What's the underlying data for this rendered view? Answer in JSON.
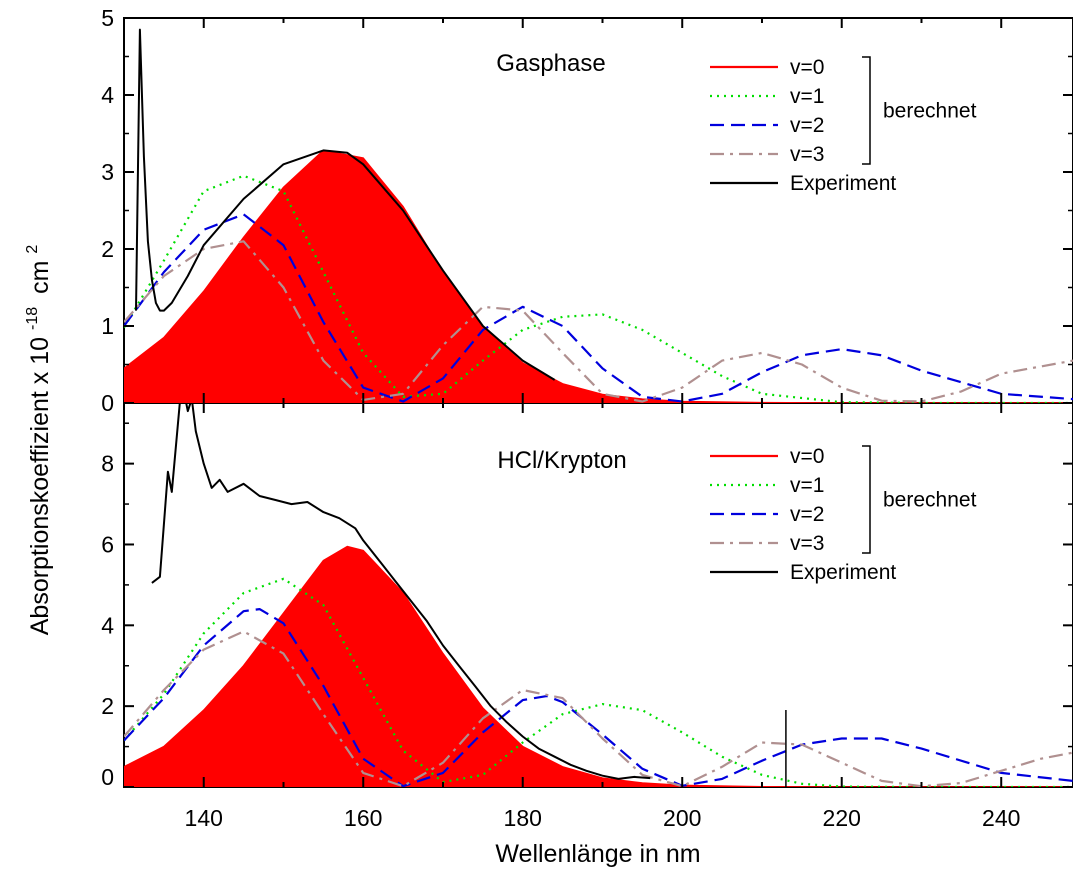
{
  "chart_data": [
    {
      "type": "area",
      "title": "Gasphase",
      "xlabel": "Wellenlänge in nm",
      "ylabel_main": "Absorptionskoeffizient x 10",
      "ylabel_exp": "-18",
      "ylabel_unit": "cm",
      "ylabel_unit_exp": "2",
      "xlim": [
        130,
        249
      ],
      "ylim": [
        0,
        5
      ],
      "xticks": [
        "140",
        "160",
        "180",
        "200",
        "220",
        "240"
      ],
      "yticks": [
        "0",
        "1",
        "2",
        "3",
        "4",
        "5"
      ],
      "legend": [
        "v=0",
        "v=1",
        "v=2",
        "v=3",
        "Experiment"
      ],
      "legend_group_label": "berechnet",
      "series": [
        {
          "name": "v=0",
          "color": "#ff0000",
          "style": "filled",
          "x": [
            130,
            135,
            140,
            145,
            150,
            155,
            160,
            165,
            170,
            175,
            180,
            185,
            190,
            195,
            200,
            210,
            220,
            240,
            249
          ],
          "y": [
            0.45,
            0.85,
            1.45,
            2.15,
            2.8,
            3.28,
            3.18,
            2.55,
            1.7,
            0.98,
            0.52,
            0.25,
            0.11,
            0.05,
            0.02,
            0.005,
            0,
            0,
            0
          ]
        },
        {
          "name": "v=1",
          "color": "#00dd00",
          "style": "dotted",
          "x": [
            130,
            135,
            140,
            145,
            150,
            155,
            160,
            165,
            170,
            175,
            180,
            185,
            190,
            195,
            200,
            205,
            210,
            220,
            230,
            240,
            249
          ],
          "y": [
            0.98,
            1.85,
            2.75,
            2.95,
            2.75,
            1.7,
            0.65,
            0.08,
            0.12,
            0.55,
            0.95,
            1.12,
            1.15,
            0.95,
            0.65,
            0.35,
            0.12,
            0.01,
            0,
            0,
            0
          ]
        },
        {
          "name": "v=2",
          "color": "#0000dd",
          "style": "dashed",
          "x": [
            130,
            135,
            140,
            145,
            150,
            155,
            160,
            165,
            170,
            175,
            180,
            185,
            190,
            195,
            200,
            205,
            210,
            215,
            220,
            225,
            230,
            240,
            249
          ],
          "y": [
            1.0,
            1.7,
            2.25,
            2.45,
            2.05,
            1.05,
            0.2,
            0.02,
            0.32,
            0.95,
            1.25,
            1.0,
            0.45,
            0.08,
            0.02,
            0.12,
            0.4,
            0.62,
            0.7,
            0.62,
            0.42,
            0.12,
            0.05
          ]
        },
        {
          "name": "v=3",
          "color": "#b09090",
          "style": "dashdot",
          "x": [
            130,
            135,
            140,
            145,
            150,
            155,
            160,
            165,
            170,
            175,
            180,
            185,
            190,
            195,
            200,
            205,
            210,
            215,
            220,
            225,
            230,
            235,
            240,
            249
          ],
          "y": [
            1.05,
            1.65,
            2.0,
            2.1,
            1.5,
            0.55,
            0.04,
            0.12,
            0.75,
            1.25,
            1.2,
            0.65,
            0.12,
            0.02,
            0.2,
            0.55,
            0.65,
            0.5,
            0.2,
            0.03,
            0.02,
            0.15,
            0.38,
            0.55
          ]
        },
        {
          "name": "Experiment",
          "color": "#000000",
          "style": "solid",
          "x": [
            131.5,
            132,
            132.5,
            133,
            133.5,
            134,
            134.5,
            135,
            136,
            138,
            140,
            145,
            150,
            155,
            158,
            160,
            165,
            170,
            175,
            180,
            184
          ],
          "y": [
            1.2,
            4.85,
            3.2,
            2.1,
            1.6,
            1.3,
            1.2,
            1.2,
            1.3,
            1.65,
            2.05,
            2.65,
            3.1,
            3.28,
            3.25,
            3.1,
            2.5,
            1.72,
            1.0,
            0.55,
            0.3
          ]
        }
      ]
    },
    {
      "type": "area",
      "title": "HCl/Krypton",
      "xlim": [
        130,
        249
      ],
      "ylim": [
        0,
        9.5
      ],
      "yticks": [
        "0",
        "2",
        "4",
        "6",
        "8"
      ],
      "legend": [
        "v=0",
        "v=1",
        "v=2",
        "v=3",
        "Experiment"
      ],
      "legend_group_label": "berechnet",
      "series": [
        {
          "name": "v=0",
          "color": "#ff0000",
          "style": "filled",
          "x": [
            130,
            135,
            140,
            145,
            150,
            155,
            158,
            160,
            165,
            170,
            175,
            180,
            185,
            190,
            195,
            200,
            210,
            220,
            249
          ],
          "y": [
            0.5,
            1.0,
            1.9,
            3.0,
            4.3,
            5.6,
            5.95,
            5.85,
            4.8,
            3.3,
            1.95,
            1.0,
            0.5,
            0.22,
            0.1,
            0.04,
            0.005,
            0,
            0
          ]
        },
        {
          "name": "v=1",
          "color": "#00dd00",
          "style": "dotted",
          "x": [
            130,
            135,
            140,
            145,
            150,
            155,
            160,
            165,
            170,
            175,
            180,
            185,
            190,
            195,
            200,
            205,
            210,
            215,
            220,
            230,
            249
          ],
          "y": [
            1.15,
            2.3,
            3.8,
            4.8,
            5.15,
            4.5,
            2.7,
            0.9,
            0.12,
            0.3,
            1.1,
            1.8,
            2.05,
            1.9,
            1.35,
            0.75,
            0.3,
            0.08,
            0.01,
            0,
            0
          ]
        },
        {
          "name": "v=2",
          "color": "#0000dd",
          "style": "dashed",
          "x": [
            130,
            135,
            140,
            145,
            147,
            150,
            155,
            160,
            165,
            170,
            175,
            180,
            183,
            185,
            190,
            195,
            200,
            205,
            210,
            215,
            220,
            225,
            230,
            240,
            249
          ],
          "y": [
            1.15,
            2.2,
            3.5,
            4.35,
            4.4,
            4.05,
            2.5,
            0.7,
            0.02,
            0.35,
            1.35,
            2.15,
            2.25,
            2.1,
            1.3,
            0.45,
            0.03,
            0.2,
            0.65,
            1.05,
            1.2,
            1.2,
            0.95,
            0.35,
            0.15
          ]
        },
        {
          "name": "v=3",
          "color": "#b09090",
          "style": "dashdot",
          "x": [
            130,
            135,
            140,
            145,
            150,
            155,
            160,
            165,
            170,
            175,
            180,
            185,
            190,
            195,
            200,
            205,
            210,
            215,
            220,
            225,
            230,
            235,
            240,
            245,
            249
          ],
          "y": [
            1.25,
            2.4,
            3.4,
            3.85,
            3.3,
            1.8,
            0.35,
            0.02,
            0.6,
            1.7,
            2.4,
            2.2,
            1.2,
            0.3,
            0.02,
            0.5,
            1.1,
            1.05,
            0.6,
            0.15,
            0.02,
            0.1,
            0.4,
            0.7,
            0.85
          ]
        },
        {
          "name": "Experiment",
          "color": "#000000",
          "style": "solid",
          "x": [
            133.5,
            134.5,
            135,
            135.5,
            136,
            136.5,
            137,
            137.5,
            138,
            138.5,
            139,
            140,
            141,
            142,
            143,
            145,
            147,
            149,
            151,
            153,
            155,
            157,
            159,
            160,
            162,
            164,
            166,
            168,
            170,
            172,
            174,
            176,
            178,
            180,
            182,
            184,
            186,
            188,
            190,
            192,
            194,
            196
          ],
          "y": [
            5.05,
            5.2,
            6.5,
            7.8,
            7.3,
            8.4,
            9.5,
            9.8,
            9.3,
            9.6,
            8.8,
            8.0,
            7.4,
            7.6,
            7.3,
            7.5,
            7.2,
            7.1,
            7.0,
            7.05,
            6.8,
            6.65,
            6.4,
            6.1,
            5.6,
            5.1,
            4.6,
            4.1,
            3.5,
            3.0,
            2.5,
            2.0,
            1.6,
            1.25,
            0.95,
            0.75,
            0.55,
            0.4,
            0.28,
            0.2,
            0.25,
            0.22
          ]
        }
      ]
    }
  ]
}
